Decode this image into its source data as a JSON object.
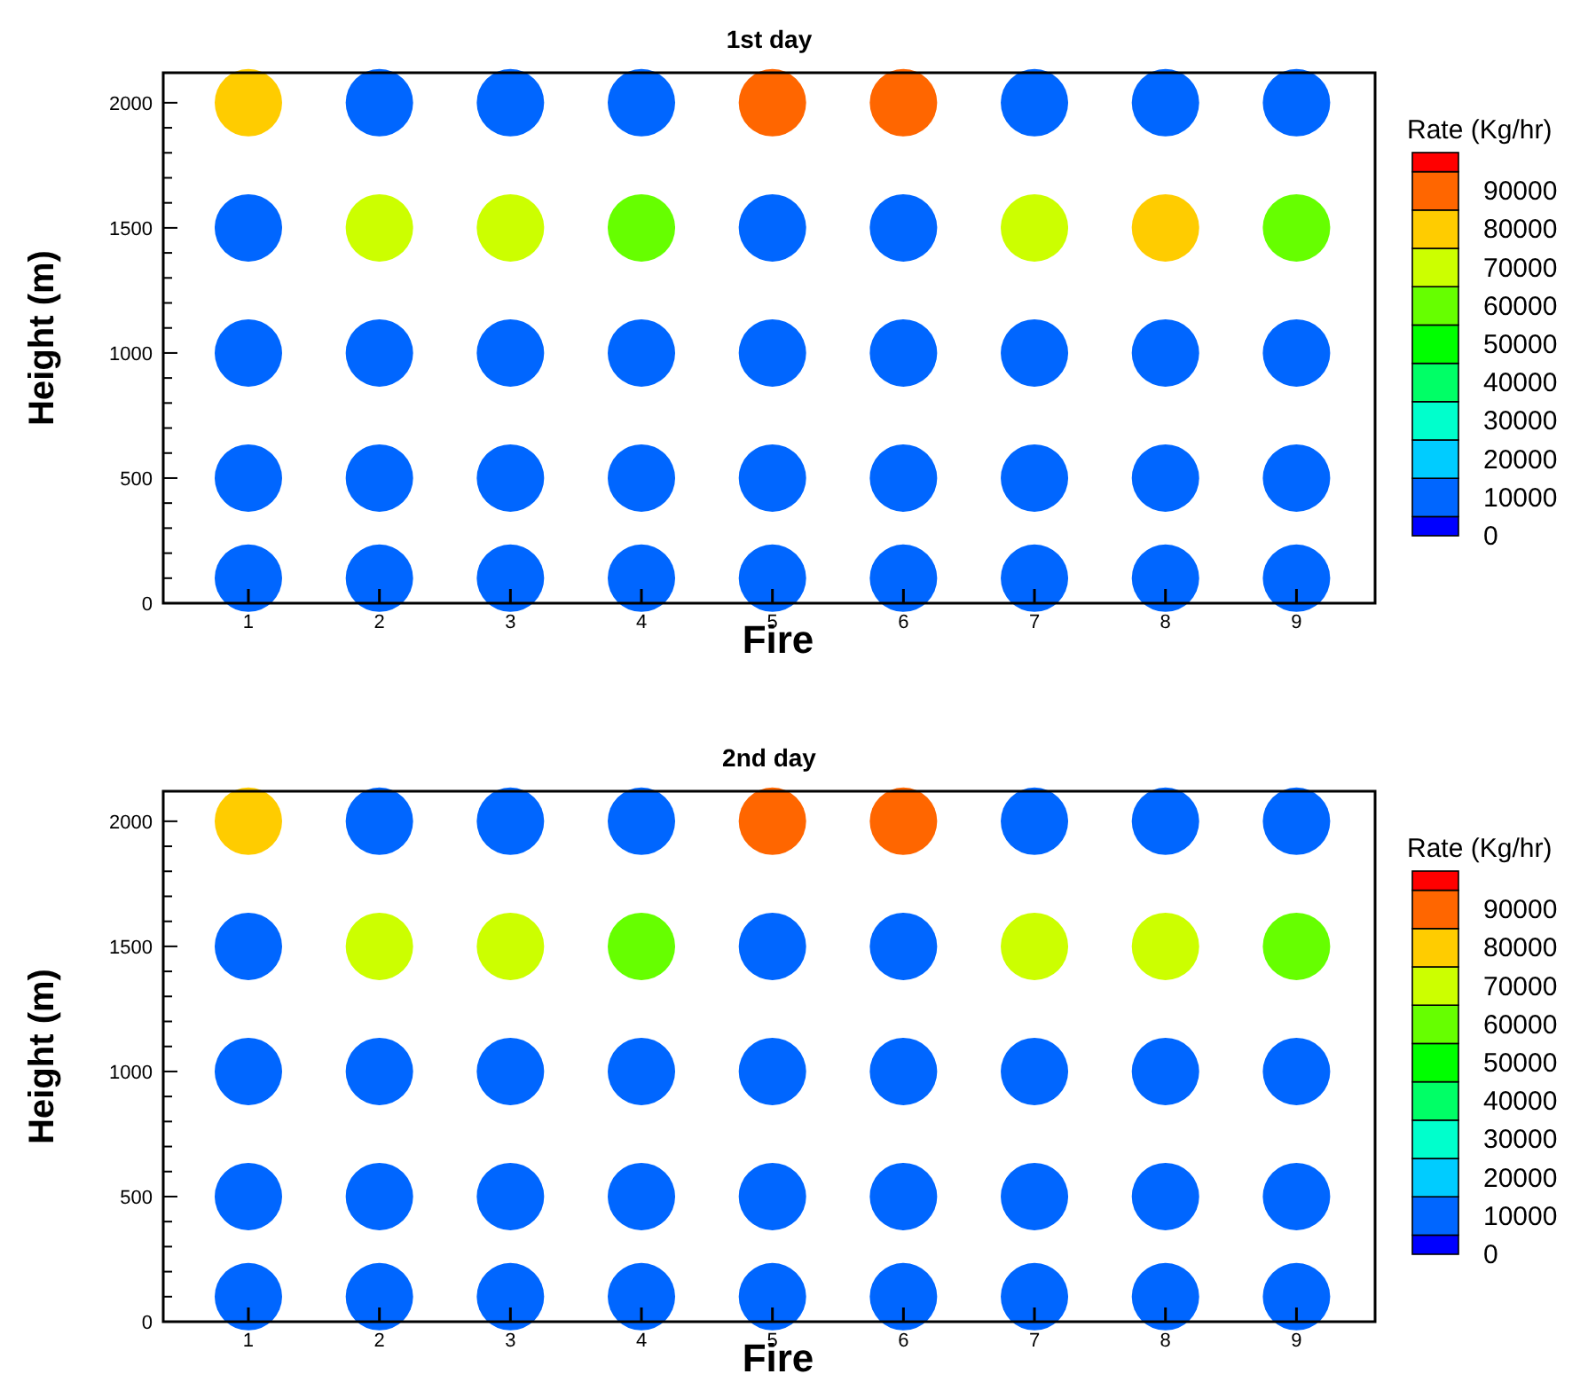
{
  "chart_data": [
    {
      "type": "scatter",
      "title": "1st day",
      "xlabel": "Fire",
      "ylabel": "Height (m)",
      "clabel": "Rate (Kg/hr)",
      "x": [
        1,
        2,
        3,
        4,
        5,
        6,
        7,
        8,
        9,
        1,
        2,
        3,
        4,
        5,
        6,
        7,
        8,
        9,
        1,
        2,
        3,
        4,
        5,
        6,
        7,
        8,
        9,
        1,
        2,
        3,
        4,
        5,
        6,
        7,
        8,
        9,
        1,
        2,
        3,
        4,
        5,
        6,
        7,
        8,
        9
      ],
      "values": [
        2000,
        2000,
        2000,
        2000,
        2000,
        2000,
        2000,
        2000,
        2000,
        1500,
        1500,
        1500,
        1500,
        1500,
        1500,
        1500,
        1500,
        1500,
        1000,
        1000,
        1000,
        1000,
        1000,
        1000,
        1000,
        1000,
        1000,
        500,
        500,
        500,
        500,
        500,
        500,
        500,
        500,
        500,
        100,
        100,
        100,
        100,
        100,
        100,
        100,
        100,
        100
      ],
      "cvalues": [
        80000,
        10000,
        10000,
        10000,
        90000,
        90000,
        10000,
        10000,
        10000,
        10000,
        70000,
        70000,
        60000,
        10000,
        10000,
        70000,
        80000,
        60000,
        10000,
        10000,
        10000,
        10000,
        10000,
        10000,
        10000,
        10000,
        10000,
        10000,
        10000,
        10000,
        10000,
        10000,
        10000,
        10000,
        10000,
        10000,
        10000,
        10000,
        10000,
        10000,
        10000,
        10000,
        10000,
        10000,
        10000
      ],
      "xlim": [
        0.35,
        9.6
      ],
      "xticks": [
        1,
        2,
        3,
        4,
        5,
        6,
        7,
        8,
        9
      ],
      "ylim": [
        0,
        2120
      ],
      "yticks": [
        0,
        {
          "value": 100,
          "label": null
        },
        {
          "value": 200,
          "label": null
        },
        {
          "value": 300,
          "label": null
        },
        {
          "value": 400,
          "label": null
        },
        500,
        {
          "value": 600,
          "label": null
        },
        {
          "value": 700,
          "label": null
        },
        {
          "value": 800,
          "label": null
        },
        {
          "value": 900,
          "label": null
        },
        1000,
        {
          "value": 1100,
          "label": null
        },
        {
          "value": 1200,
          "label": null
        },
        {
          "value": 1300,
          "label": null
        },
        {
          "value": 1400,
          "label": null
        },
        1500,
        {
          "value": 1600,
          "label": null
        },
        {
          "value": 1700,
          "label": null
        },
        {
          "value": 1800,
          "label": null
        },
        {
          "value": 1900,
          "label": null
        },
        2000
      ],
      "clim": [
        0,
        100000
      ],
      "cticks": [
        0,
        10000,
        20000,
        30000,
        40000,
        50000,
        60000,
        70000,
        80000,
        90000
      ],
      "marker": "circle",
      "grid": false
    },
    {
      "type": "scatter",
      "title": "2nd day",
      "xlabel": "Fire",
      "ylabel": "Height (m)",
      "clabel": "Rate (Kg/hr)",
      "x": [
        1,
        2,
        3,
        4,
        5,
        6,
        7,
        8,
        9,
        1,
        2,
        3,
        4,
        5,
        6,
        7,
        8,
        9,
        1,
        2,
        3,
        4,
        5,
        6,
        7,
        8,
        9,
        1,
        2,
        3,
        4,
        5,
        6,
        7,
        8,
        9,
        1,
        2,
        3,
        4,
        5,
        6,
        7,
        8,
        9
      ],
      "values": [
        2000,
        2000,
        2000,
        2000,
        2000,
        2000,
        2000,
        2000,
        2000,
        1500,
        1500,
        1500,
        1500,
        1500,
        1500,
        1500,
        1500,
        1500,
        1000,
        1000,
        1000,
        1000,
        1000,
        1000,
        1000,
        1000,
        1000,
        500,
        500,
        500,
        500,
        500,
        500,
        500,
        500,
        500,
        100,
        100,
        100,
        100,
        100,
        100,
        100,
        100,
        100
      ],
      "cvalues": [
        80000,
        10000,
        10000,
        10000,
        90000,
        90000,
        10000,
        10000,
        10000,
        10000,
        70000,
        70000,
        60000,
        10000,
        10000,
        70000,
        70000,
        60000,
        10000,
        10000,
        10000,
        10000,
        10000,
        10000,
        10000,
        10000,
        10000,
        10000,
        10000,
        10000,
        10000,
        10000,
        10000,
        10000,
        10000,
        10000,
        10000,
        10000,
        10000,
        10000,
        10000,
        10000,
        10000,
        10000,
        10000
      ],
      "xlim": [
        0.35,
        9.6
      ],
      "xticks": [
        1,
        2,
        3,
        4,
        5,
        6,
        7,
        8,
        9
      ],
      "ylim": [
        0,
        2120
      ],
      "yticks": [
        0,
        {
          "value": 100,
          "label": null
        },
        {
          "value": 200,
          "label": null
        },
        {
          "value": 300,
          "label": null
        },
        {
          "value": 400,
          "label": null
        },
        500,
        {
          "value": 600,
          "label": null
        },
        {
          "value": 700,
          "label": null
        },
        {
          "value": 800,
          "label": null
        },
        {
          "value": 900,
          "label": null
        },
        1000,
        {
          "value": 1100,
          "label": null
        },
        {
          "value": 1200,
          "label": null
        },
        {
          "value": 1300,
          "label": null
        },
        {
          "value": 1400,
          "label": null
        },
        1500,
        {
          "value": 1600,
          "label": null
        },
        {
          "value": 1700,
          "label": null
        },
        {
          "value": 1800,
          "label": null
        },
        {
          "value": 1900,
          "label": null
        },
        2000
      ],
      "clim": [
        0,
        100000
      ],
      "cticks": [
        0,
        10000,
        20000,
        30000,
        40000,
        50000,
        60000,
        70000,
        80000,
        90000
      ],
      "marker": "circle",
      "grid": false
    }
  ]
}
